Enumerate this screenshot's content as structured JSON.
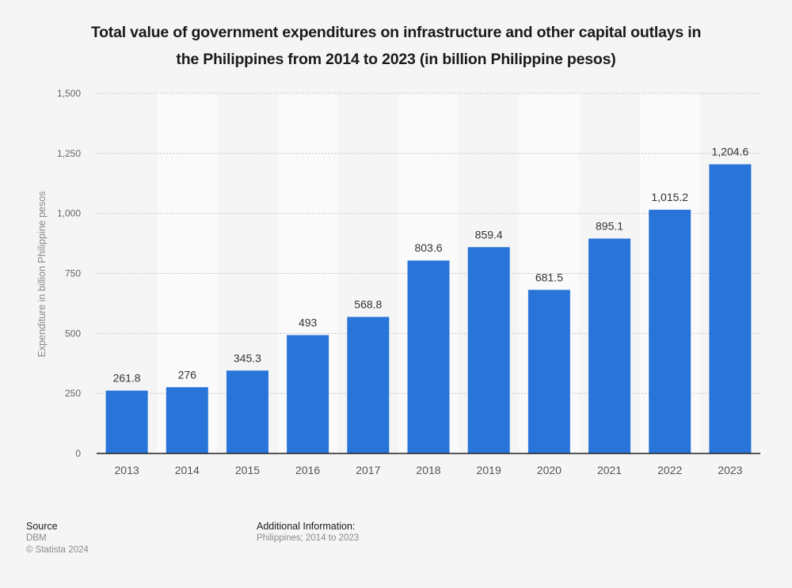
{
  "title_lines": [
    "Total value of government expenditures on infrastructure and other capital outlays in",
    "the Philippines from 2014 to 2023 (in billion Philippine pesos)"
  ],
  "chart_data": {
    "type": "bar",
    "title": "Total value of government expenditures on infrastructure and other capital outlays in the Philippines from 2014 to 2023 (in billion Philippine pesos)",
    "xlabel": "",
    "ylabel": "Expenditure in billion Philippine pesos",
    "categories": [
      "2013",
      "2014",
      "2015",
      "2016",
      "2017",
      "2018",
      "2019",
      "2020",
      "2021",
      "2022",
      "2023"
    ],
    "values": [
      261.8,
      276,
      345.3,
      493,
      568.8,
      803.6,
      859.4,
      681.5,
      895.1,
      1015.2,
      1204.6
    ],
    "data_labels": [
      "261.8",
      "276",
      "345.3",
      "493",
      "568.8",
      "803.6",
      "859.4",
      "681.5",
      "895.1",
      "1,015.2",
      "1,204.6"
    ],
    "ylim": [
      0,
      1500
    ],
    "yticks": [
      0,
      250,
      500,
      750,
      1000,
      1250,
      1500
    ],
    "ytick_labels": [
      "0",
      "250",
      "500",
      "750",
      "1,000",
      "1,250",
      "1,500"
    ],
    "grid": true,
    "legend": "none",
    "bar_color": "#2874d9"
  },
  "footer": {
    "source_heading": "Source",
    "source_name": "DBM",
    "copyright": "© Statista 2024",
    "additional_heading": "Additional Information:",
    "additional_text": "Philippines; 2014 to 2023"
  }
}
